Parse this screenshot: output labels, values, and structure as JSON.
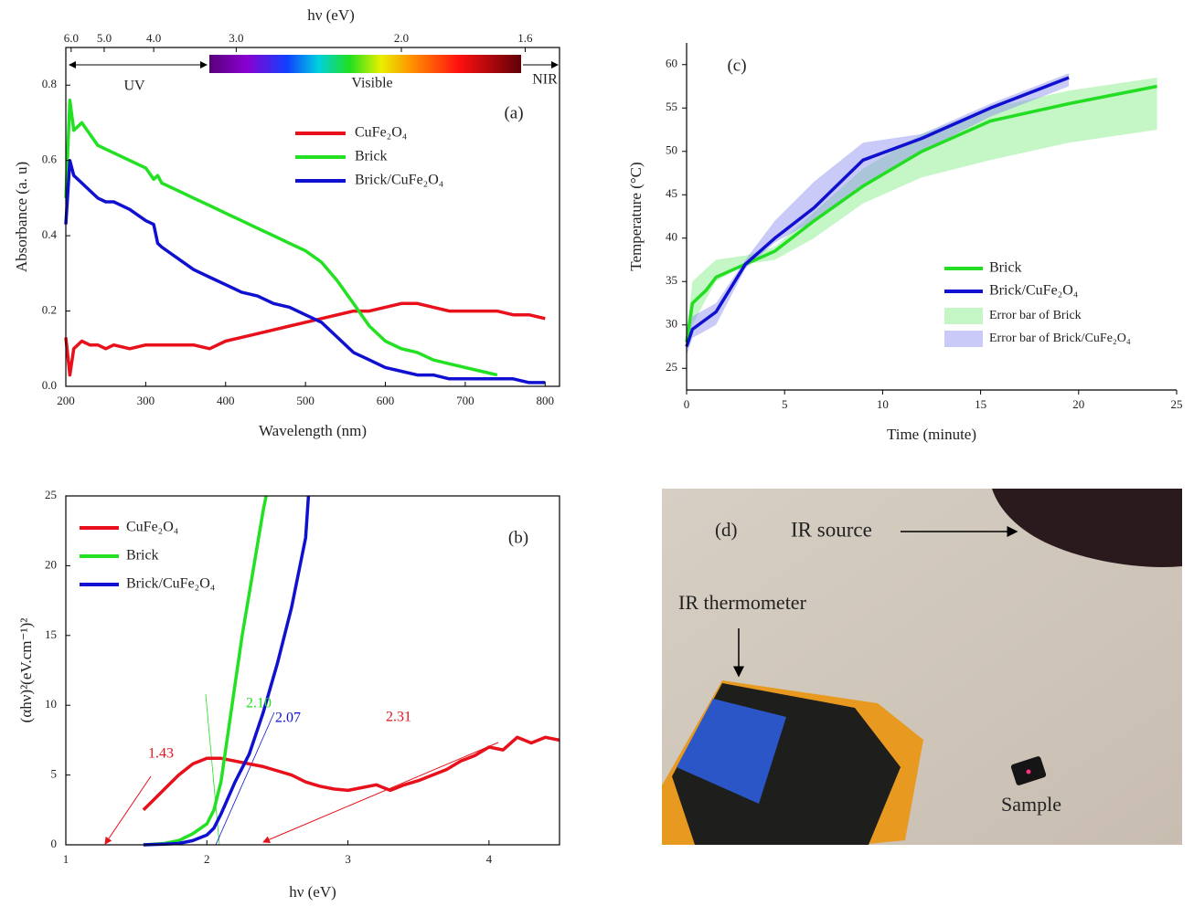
{
  "chart_data": [
    {
      "type": "line",
      "x_label": "Wavelength (nm)",
      "y_label": "Absorbance (a. u)",
      "x2_label": "hν (eV)",
      "xlim": [
        200,
        818
      ],
      "ylim": [
        0,
        0.9
      ],
      "xticks": [
        200,
        300,
        400,
        500,
        600,
        700,
        800
      ],
      "yticks": [
        {
          "value": 0,
          "label": "0.0"
        },
        0.2,
        0.4,
        0.6,
        0.8
      ],
      "x2ticks": [
        {
          "value": 6,
          "label": "6.0"
        },
        {
          "value": 5,
          "label": "5.0"
        },
        {
          "value": 4,
          "label": "4.0"
        },
        {
          "value": 3,
          "label": "3.0"
        },
        {
          "value": 2,
          "label": "2.0"
        },
        1.6
      ],
      "x": [
        200,
        205,
        210,
        220,
        230,
        240,
        250,
        260,
        280,
        300,
        310,
        315,
        320,
        340,
        360,
        380,
        400,
        420,
        440,
        460,
        480,
        500,
        520,
        540,
        560,
        580,
        600,
        620,
        640,
        660,
        680,
        700,
        720,
        740,
        760,
        780,
        800
      ],
      "series": [
        {
          "name": "CuFe₂O₄",
          "color": "#e8101a",
          "values": [
            0.13,
            0.03,
            0.1,
            0.12,
            0.11,
            0.11,
            0.1,
            0.11,
            0.1,
            0.11,
            0.11,
            0.11,
            0.11,
            0.11,
            0.11,
            0.1,
            0.12,
            0.13,
            0.14,
            0.15,
            0.16,
            0.17,
            0.18,
            0.19,
            0.2,
            0.2,
            0.21,
            0.22,
            0.22,
            0.21,
            0.2,
            0.2,
            0.2,
            0.2,
            0.19,
            0.19,
            0.18
          ]
        },
        {
          "name": "Brick",
          "color": "#22e022",
          "values": [
            0.5,
            0.76,
            0.68,
            0.7,
            0.67,
            0.64,
            0.63,
            0.62,
            0.6,
            0.58,
            0.55,
            0.56,
            0.54,
            0.52,
            0.5,
            0.48,
            0.46,
            0.44,
            0.42,
            0.4,
            0.38,
            0.36,
            0.33,
            0.28,
            0.22,
            0.16,
            0.12,
            0.1,
            0.09,
            0.07,
            0.06,
            0.05,
            0.04,
            0.03,
            null,
            null,
            null
          ]
        },
        {
          "name": "Brick/CuFe₂O₄",
          "color": "#1010d0",
          "values": [
            0.43,
            0.6,
            0.56,
            0.54,
            0.52,
            0.5,
            0.49,
            0.49,
            0.47,
            0.44,
            0.43,
            0.38,
            0.37,
            0.34,
            0.31,
            0.29,
            0.27,
            0.25,
            0.24,
            0.22,
            0.21,
            0.19,
            0.17,
            0.13,
            0.09,
            0.07,
            0.05,
            0.04,
            0.03,
            0.03,
            0.02,
            0.02,
            0.02,
            0.02,
            0.02,
            0.01,
            0.01
          ]
        }
      ],
      "annotations": [
        {
          "text": "(a)"
        },
        {
          "text": "UV"
        },
        {
          "text": "Visible"
        },
        {
          "text": "NIR"
        }
      ]
    },
    {
      "type": "line",
      "x_label": "hν (eV)",
      "y_label": "(αhν)²(eV.cm⁻¹)²",
      "xlim": [
        1,
        4.5
      ],
      "ylim": [
        0,
        25
      ],
      "xticks": [
        1,
        2,
        3,
        4
      ],
      "yticks": [
        0,
        5,
        10,
        15,
        20,
        25
      ],
      "series": [
        {
          "name": "CuFe₂O₄",
          "color": "#e8101a",
          "x": [
            1.55,
            1.6,
            1.7,
            1.8,
            1.9,
            2.0,
            2.1,
            2.2,
            2.3,
            2.4,
            2.5,
            2.6,
            2.7,
            2.8,
            2.9,
            3.0,
            3.1,
            3.2,
            3.3,
            3.4,
            3.5,
            3.6,
            3.7,
            3.8,
            3.9,
            4.0,
            4.1,
            4.2,
            4.3,
            4.4,
            4.5
          ],
          "values": [
            2.5,
            3,
            4,
            5,
            5.8,
            6.2,
            6.2,
            6,
            5.8,
            5.6,
            5.3,
            5,
            4.5,
            4.2,
            4,
            3.9,
            4.1,
            4.3,
            3.9,
            4.3,
            4.6,
            5,
            5.4,
            6,
            6.4,
            7,
            6.8,
            7.7,
            7.3,
            7.7,
            7.5
          ]
        },
        {
          "name": "Brick",
          "color": "#22e022",
          "x": [
            1.55,
            1.7,
            1.8,
            1.9,
            2.0,
            2.05,
            2.1,
            2.15,
            2.2,
            2.25,
            2.3,
            2.35,
            2.4,
            2.42
          ],
          "values": [
            0,
            0.1,
            0.3,
            0.8,
            1.5,
            2.5,
            4.5,
            8,
            11.5,
            15,
            18,
            21,
            24,
            25
          ]
        },
        {
          "name": "Brick/CuFe₂O₄",
          "color": "#1010d0",
          "x": [
            1.55,
            1.7,
            1.8,
            1.9,
            2.0,
            2.05,
            2.1,
            2.2,
            2.3,
            2.4,
            2.5,
            2.6,
            2.7,
            2.72
          ],
          "values": [
            0,
            0.05,
            0.1,
            0.3,
            0.7,
            1.2,
            2.2,
            4.5,
            6.5,
            9.5,
            13,
            17,
            22,
            25
          ]
        }
      ],
      "annotations": [
        {
          "text": "(b)"
        },
        {
          "text": "1.43",
          "color": "#e8101a"
        },
        {
          "text": "2.10",
          "color": "#22e022"
        },
        {
          "text": "2.07",
          "color": "#1010d0"
        },
        {
          "text": "2.31",
          "color": "#e8101a"
        }
      ]
    },
    {
      "type": "line",
      "x_label": "Time (minute)",
      "y_label": "Temperature (°C)",
      "xlim": [
        0,
        25
      ],
      "ylim": [
        22.5,
        62.5
      ],
      "xticks": [
        0,
        5,
        10,
        15,
        20,
        25
      ],
      "yticks": [
        25,
        30,
        35,
        40,
        45,
        50,
        55,
        60
      ],
      "series": [
        {
          "name": "Brick",
          "color": "#22dd22",
          "x": [
            0,
            0.3,
            1,
            1.5,
            3,
            4.5,
            6.5,
            9,
            12,
            15.5,
            19.5,
            24
          ],
          "values": [
            28,
            32.5,
            34,
            35.5,
            37,
            38.5,
            42,
            46,
            50,
            53.5,
            55.5,
            57.5
          ]
        },
        {
          "name": "Brick/CuFe₂O₄",
          "color": "#1010d0",
          "x": [
            0,
            0.3,
            1.5,
            3,
            4.5,
            6.5,
            9,
            12,
            15.5,
            19.5
          ],
          "values": [
            27.5,
            29.5,
            31.5,
            37,
            40,
            43.5,
            49,
            51.5,
            55,
            58.5
          ]
        }
      ],
      "bands": [
        {
          "name": "Error bar of Brick",
          "color": "#7eea7e",
          "x": [
            0,
            0.3,
            1,
            1.5,
            3,
            4.5,
            6.5,
            9,
            12,
            15.5,
            19.5,
            24
          ],
          "lower": [
            27,
            30,
            33,
            35,
            37,
            37.5,
            40,
            44,
            47,
            49,
            51,
            52.5
          ],
          "upper": [
            29,
            35,
            36.5,
            37.5,
            38,
            39,
            43,
            48,
            52,
            55,
            57,
            58.5
          ]
        },
        {
          "name": "Error bar of Brick/CuFe₂O₄",
          "color": "#8a8af0",
          "x": [
            0,
            0.3,
            1.5,
            3,
            4.5,
            6.5,
            9,
            12,
            15.5,
            19.5
          ],
          "lower": [
            26.5,
            28.5,
            30,
            36.5,
            39.5,
            42,
            46,
            50,
            54,
            57.5
          ],
          "upper": [
            28.5,
            31,
            32.5,
            37.5,
            42,
            46.5,
            51,
            52,
            55.5,
            59
          ]
        }
      ],
      "annotations": [
        {
          "text": "(c)"
        }
      ]
    }
  ],
  "photo": {
    "labels": [
      "(d)",
      "IR source",
      "IR thermometer",
      "Sample"
    ]
  }
}
